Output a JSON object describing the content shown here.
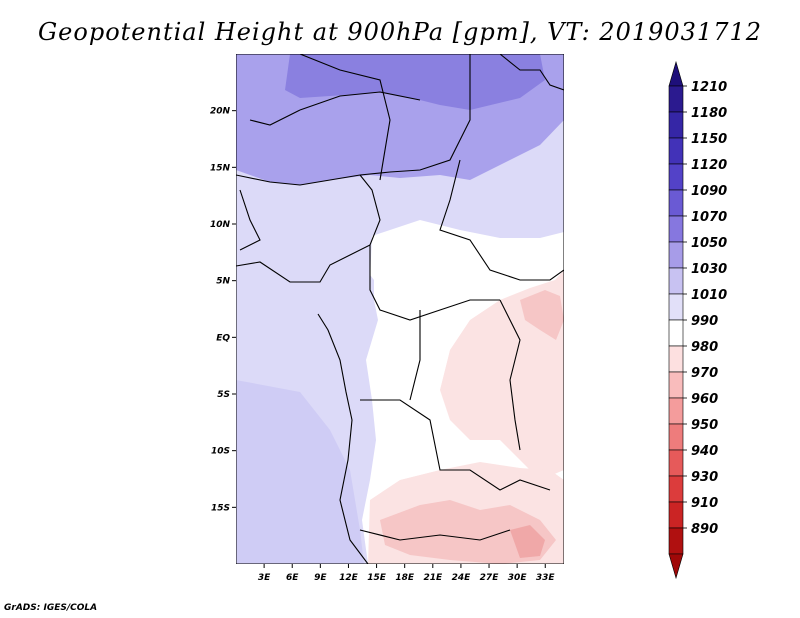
{
  "title": "Geopotential Height at 900hPa [gpm], VT: 2019031712",
  "footer": "GrADS: IGES/COLA",
  "map": {
    "lon_range": [
      0,
      35
    ],
    "lat_range": [
      -20,
      25
    ],
    "x_ticks": [
      "3E",
      "6E",
      "9E",
      "12E",
      "15E",
      "18E",
      "21E",
      "24E",
      "27E",
      "30E",
      "33E"
    ],
    "x_tick_values": [
      3,
      6,
      9,
      12,
      15,
      18,
      21,
      24,
      27,
      30,
      33
    ],
    "y_ticks": [
      "20N",
      "15N",
      "10N",
      "5N",
      "EQ",
      "5S",
      "10S",
      "15S"
    ],
    "y_tick_values": [
      20,
      15,
      10,
      5,
      0,
      -5,
      -10,
      -15
    ]
  },
  "colorbar": {
    "levels": [
      "1210",
      "1180",
      "1150",
      "1120",
      "1090",
      "1070",
      "1050",
      "1030",
      "1010",
      "990",
      "980",
      "970",
      "960",
      "950",
      "940",
      "930",
      "910",
      "890"
    ],
    "colors": [
      "#2b1a8f",
      "#3526a6",
      "#4232b8",
      "#5342c8",
      "#6a5ad4",
      "#8677df",
      "#a79ce8",
      "#c8c2f2",
      "#e2e0f9",
      "#ffffff",
      "#fde0e0",
      "#f9bcbc",
      "#f49c9c",
      "#ee7c7c",
      "#e65a5a",
      "#dc3c3c",
      "#cb2424",
      "#b01010"
    ],
    "top_color": "#1e0f7a",
    "bottom_color": "#a00808"
  },
  "colors": {
    "purple_north": "#8a80e0",
    "purple_mid": "#a9a1ec",
    "lavender": "#c7c3f3",
    "pale_lavender": "#dcdaf8",
    "white": "#ffffff",
    "pink_light": "#fbe3e3",
    "pink_mid": "#f6c6c6",
    "pink_dark": "#f0a8a8",
    "border": "#000000"
  }
}
